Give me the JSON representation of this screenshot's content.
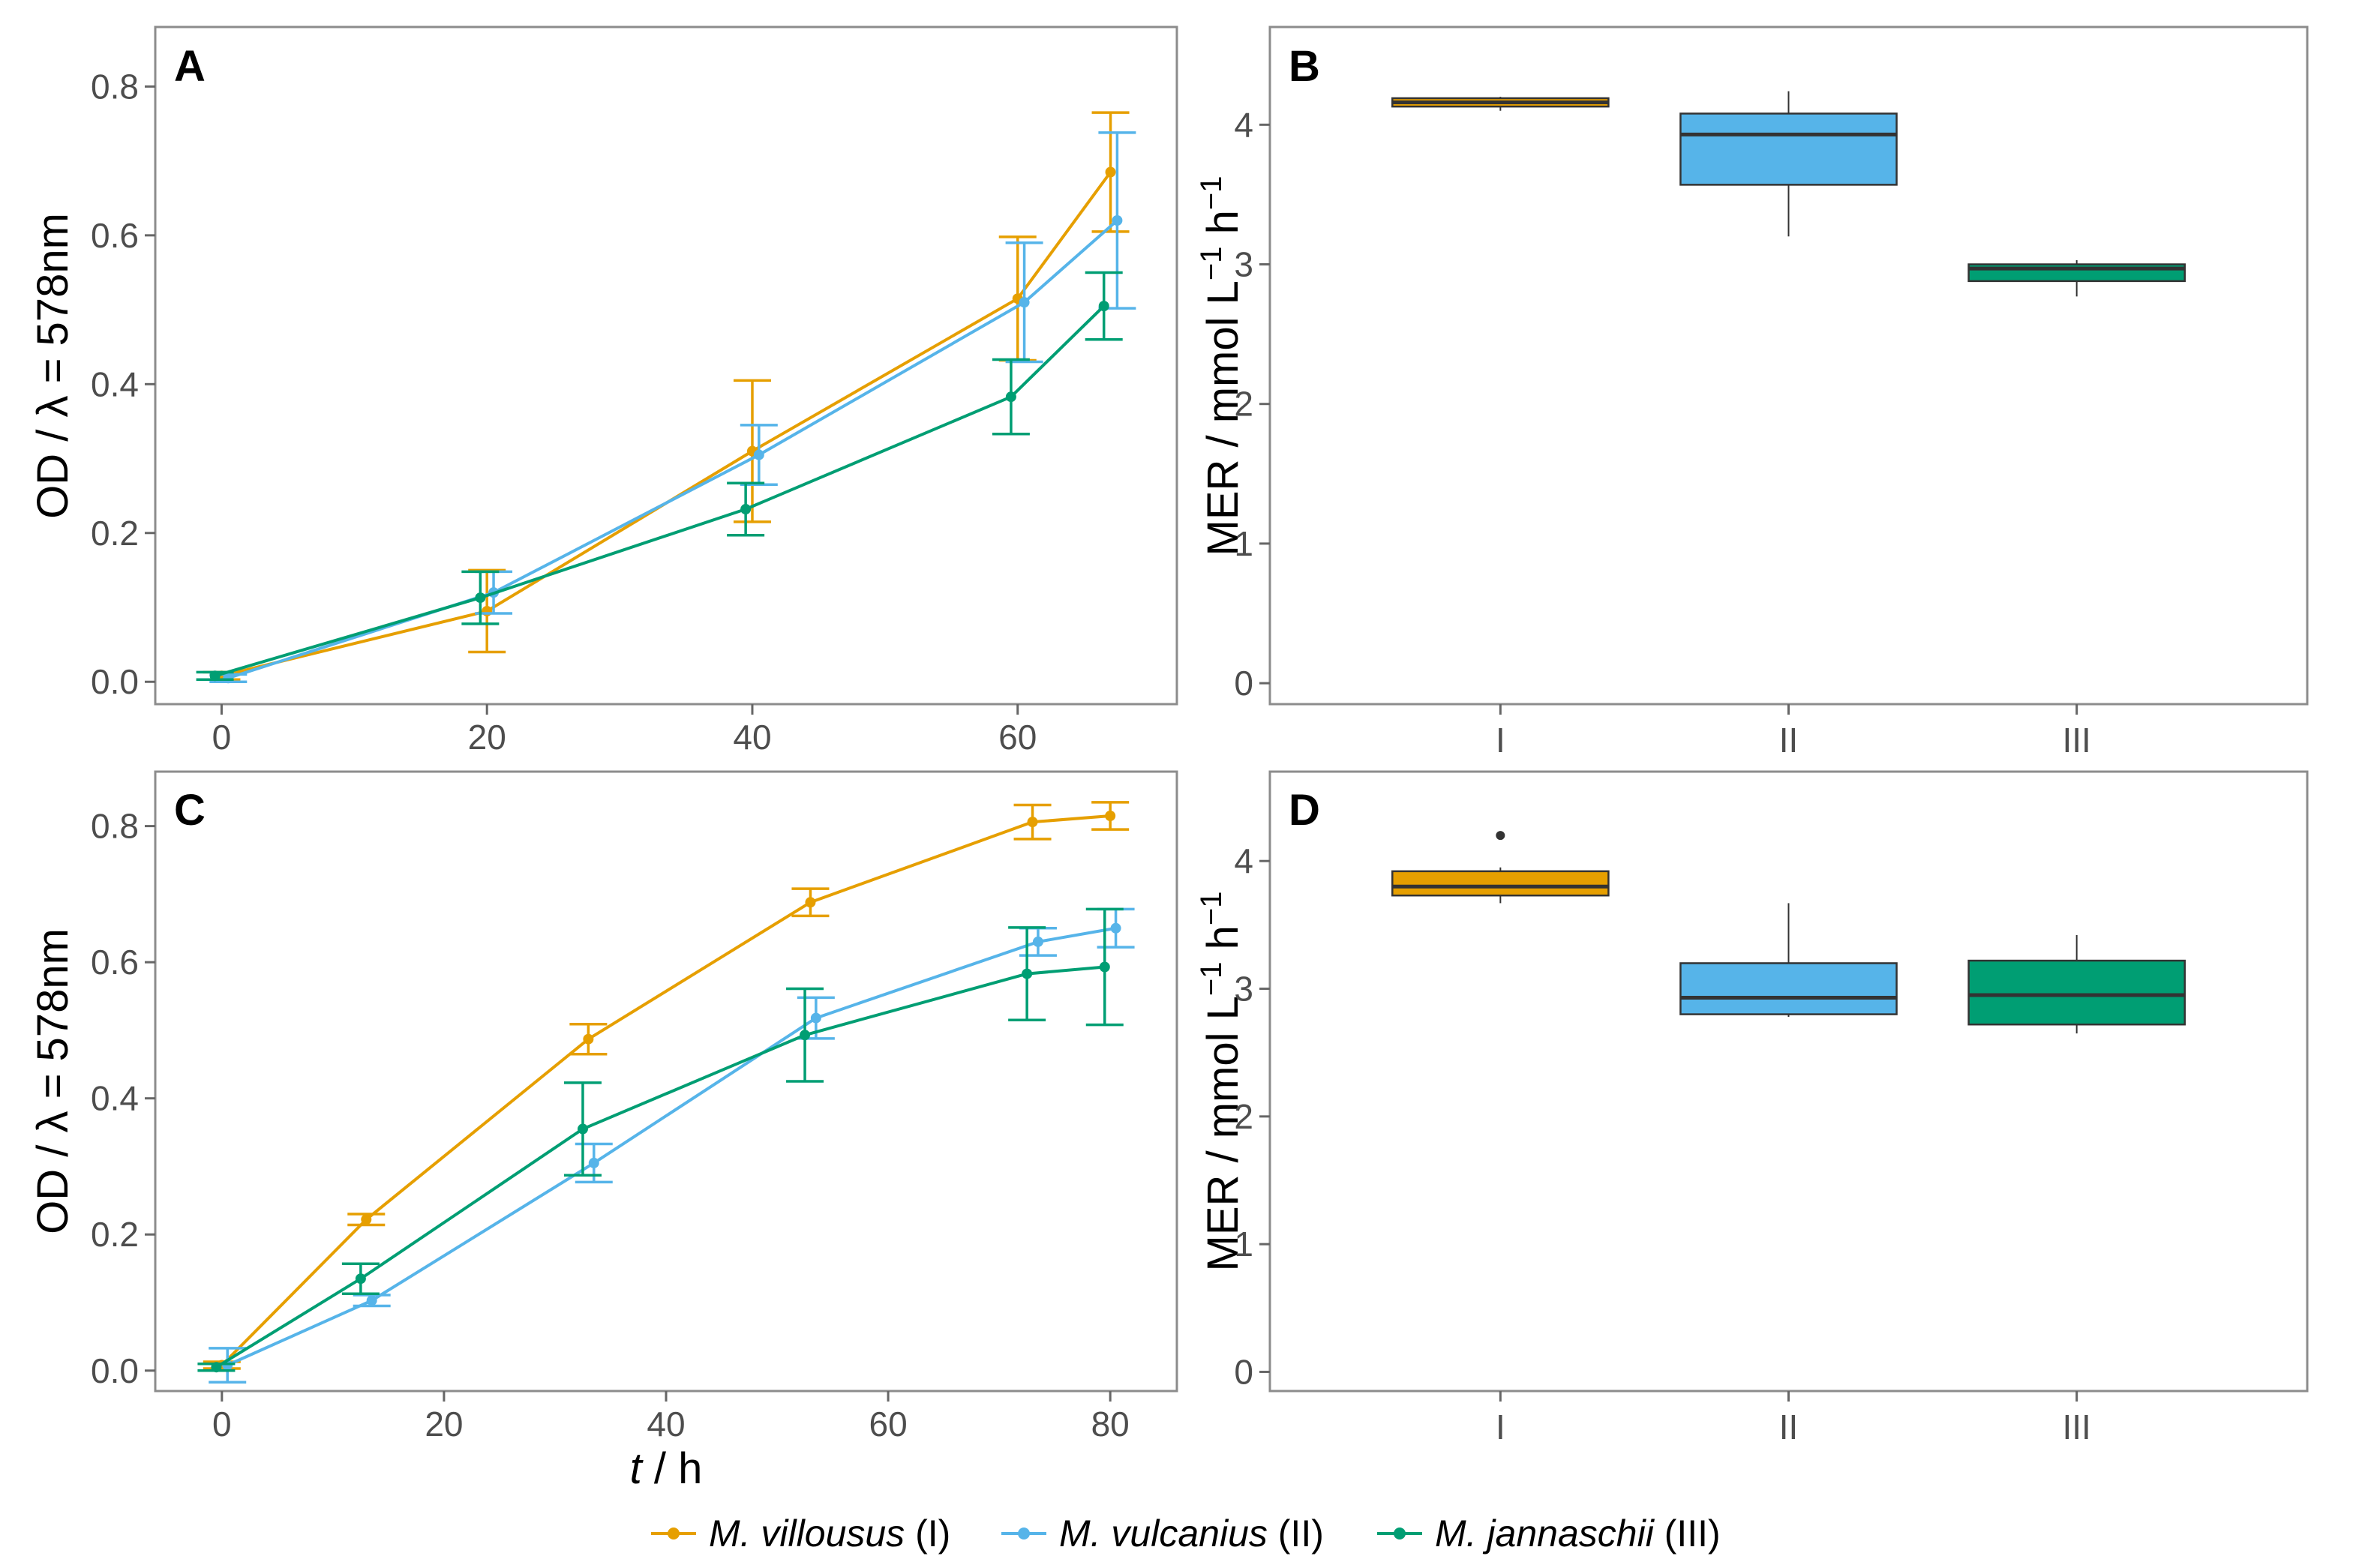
{
  "colors": {
    "I": "#E69F00",
    "II": "#56B4E9",
    "III": "#009E73",
    "median": "#333333",
    "whisker": "#333333",
    "panel_border": "#8c8c8c"
  },
  "legend": [
    {
      "key": "I",
      "species": "M. villousus",
      "suffix": " (I)"
    },
    {
      "key": "II",
      "species": "M. vulcanius",
      "suffix": " (II)"
    },
    {
      "key": "III",
      "species": "M. jannaschii",
      "suffix": " (III)"
    }
  ],
  "chart_data": [
    {
      "id": "A",
      "type": "line",
      "panel_label": "A",
      "xlabel": "",
      "ylabel": "OD / λ = 578nm",
      "xlim": [
        -5,
        72
      ],
      "ylim": [
        -0.03,
        0.88
      ],
      "xticks": [
        0,
        20,
        40,
        60
      ],
      "yticks": [
        0.0,
        0.2,
        0.4,
        0.6,
        0.8
      ],
      "ytick_labels": [
        "0.0",
        "0.2",
        "0.4",
        "0.6",
        "0.8"
      ],
      "series": [
        {
          "key": "I",
          "x": [
            0,
            20,
            40,
            60,
            67
          ],
          "y": [
            0.008,
            0.095,
            0.31,
            0.515,
            0.685
          ],
          "err": [
            0.005,
            0.055,
            0.095,
            0.083,
            0.08
          ]
        },
        {
          "key": "II",
          "x": [
            0.5,
            20.5,
            40.5,
            60.5,
            67.5
          ],
          "y": [
            0.005,
            0.12,
            0.305,
            0.51,
            0.62
          ],
          "err": [
            0.005,
            0.028,
            0.04,
            0.08,
            0.118
          ]
        },
        {
          "key": "III",
          "x": [
            -0.5,
            19.5,
            39.5,
            59.5,
            66.5
          ],
          "y": [
            0.008,
            0.113,
            0.232,
            0.383,
            0.505
          ],
          "err": [
            0.005,
            0.035,
            0.035,
            0.05,
            0.045
          ]
        }
      ]
    },
    {
      "id": "B",
      "type": "box",
      "panel_label": "B",
      "ylabel": "MER / mmol L",
      "ylabel_sup1": "−1",
      "ylabel_mid": " h",
      "ylabel_sup2": "−1",
      "categories": [
        "I",
        "II",
        "III"
      ],
      "ylim": [
        -0.15,
        4.7
      ],
      "yticks": [
        0,
        1,
        2,
        3,
        4
      ],
      "ytick_labels": [
        "0",
        "1",
        "2",
        "3",
        "4"
      ],
      "boxes": [
        {
          "key": "I",
          "min": 4.1,
          "q1": 4.13,
          "median": 4.16,
          "q3": 4.19,
          "max": 4.2,
          "outliers": []
        },
        {
          "key": "II",
          "min": 3.2,
          "q1": 3.57,
          "median": 3.93,
          "q3": 4.08,
          "max": 4.24,
          "outliers": []
        },
        {
          "key": "III",
          "min": 2.77,
          "q1": 2.88,
          "median": 2.97,
          "q3": 3.0,
          "max": 3.03,
          "outliers": []
        }
      ]
    },
    {
      "id": "C",
      "type": "line",
      "panel_label": "C",
      "xlabel": "t",
      "xlabel_suffix": " / h",
      "ylabel": "OD / λ = 578nm",
      "xlim": [
        -6,
        86
      ],
      "ylim": [
        -0.03,
        0.88
      ],
      "xticks": [
        0,
        20,
        40,
        60,
        80
      ],
      "yticks": [
        0.0,
        0.2,
        0.4,
        0.6,
        0.8
      ],
      "ytick_labels": [
        "0.0",
        "0.2",
        "0.4",
        "0.6",
        "0.8"
      ],
      "series": [
        {
          "key": "I",
          "x": [
            0,
            13,
            33,
            53,
            73,
            80
          ],
          "y": [
            0.008,
            0.222,
            0.487,
            0.688,
            0.806,
            0.815
          ],
          "err": [
            0.005,
            0.008,
            0.022,
            0.02,
            0.025,
            0.02
          ]
        },
        {
          "key": "II",
          "x": [
            0.5,
            13.5,
            33.5,
            53.5,
            73.5,
            80.5
          ],
          "y": [
            0.008,
            0.103,
            0.305,
            0.518,
            0.63,
            0.65
          ],
          "err": [
            0.025,
            0.008,
            0.028,
            0.03,
            0.02,
            0.028
          ]
        },
        {
          "key": "III",
          "x": [
            -0.5,
            12.5,
            32.5,
            52.5,
            72.5,
            79.5
          ],
          "y": [
            0.005,
            0.135,
            0.355,
            0.493,
            0.583,
            0.593
          ],
          "err": [
            0.005,
            0.022,
            0.068,
            0.068,
            0.068,
            0.085
          ]
        }
      ]
    },
    {
      "id": "D",
      "type": "box",
      "panel_label": "D",
      "xlabel": "",
      "ylabel": "MER / mmol L",
      "ylabel_sup1": "−1",
      "ylabel_mid": " h",
      "ylabel_sup2": "−1",
      "categories": [
        "I",
        "II",
        "III"
      ],
      "ylim": [
        -0.15,
        4.7
      ],
      "yticks": [
        0,
        1,
        2,
        3,
        4
      ],
      "ytick_labels": [
        "0",
        "1",
        "2",
        "3",
        "4"
      ],
      "boxes": [
        {
          "key": "I",
          "min": 3.67,
          "q1": 3.73,
          "median": 3.8,
          "q3": 3.92,
          "max": 3.95,
          "outliers": [
            4.2
          ]
        },
        {
          "key": "II",
          "min": 2.78,
          "q1": 2.8,
          "median": 2.93,
          "q3": 3.2,
          "max": 3.67,
          "outliers": []
        },
        {
          "key": "III",
          "min": 2.65,
          "q1": 2.72,
          "median": 2.95,
          "q3": 3.22,
          "max": 3.42,
          "outliers": []
        }
      ]
    }
  ]
}
